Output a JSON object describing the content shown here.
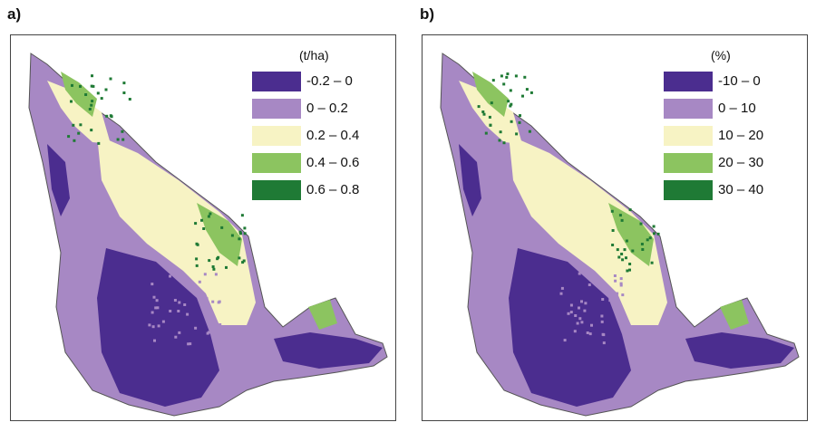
{
  "colors": {
    "class1": "#4b2d8f",
    "class2": "#a788c4",
    "class3": "#f7f3c4",
    "class4": "#8cc460",
    "class5": "#1f7a35",
    "outline": "#555555"
  },
  "panels": [
    {
      "label": "a)",
      "legend_title": "(t/ha)",
      "legend": [
        {
          "label": "-0.2 – 0",
          "color_key": "class1"
        },
        {
          "label": "0 – 0.2",
          "color_key": "class2"
        },
        {
          "label": "0.2 – 0.4",
          "color_key": "class3"
        },
        {
          "label": "0.4 – 0.6",
          "color_key": "class4"
        },
        {
          "label": "0.6 – 0.8",
          "color_key": "class5"
        }
      ]
    },
    {
      "label": "b)",
      "legend_title": "(%)",
      "legend": [
        {
          "label": "-10 – 0",
          "color_key": "class1"
        },
        {
          "label": "0 – 10",
          "color_key": "class2"
        },
        {
          "label": "10 – 20",
          "color_key": "class3"
        },
        {
          "label": "20 – 30",
          "color_key": "class4"
        },
        {
          "label": "30 – 40",
          "color_key": "class5"
        }
      ]
    }
  ]
}
